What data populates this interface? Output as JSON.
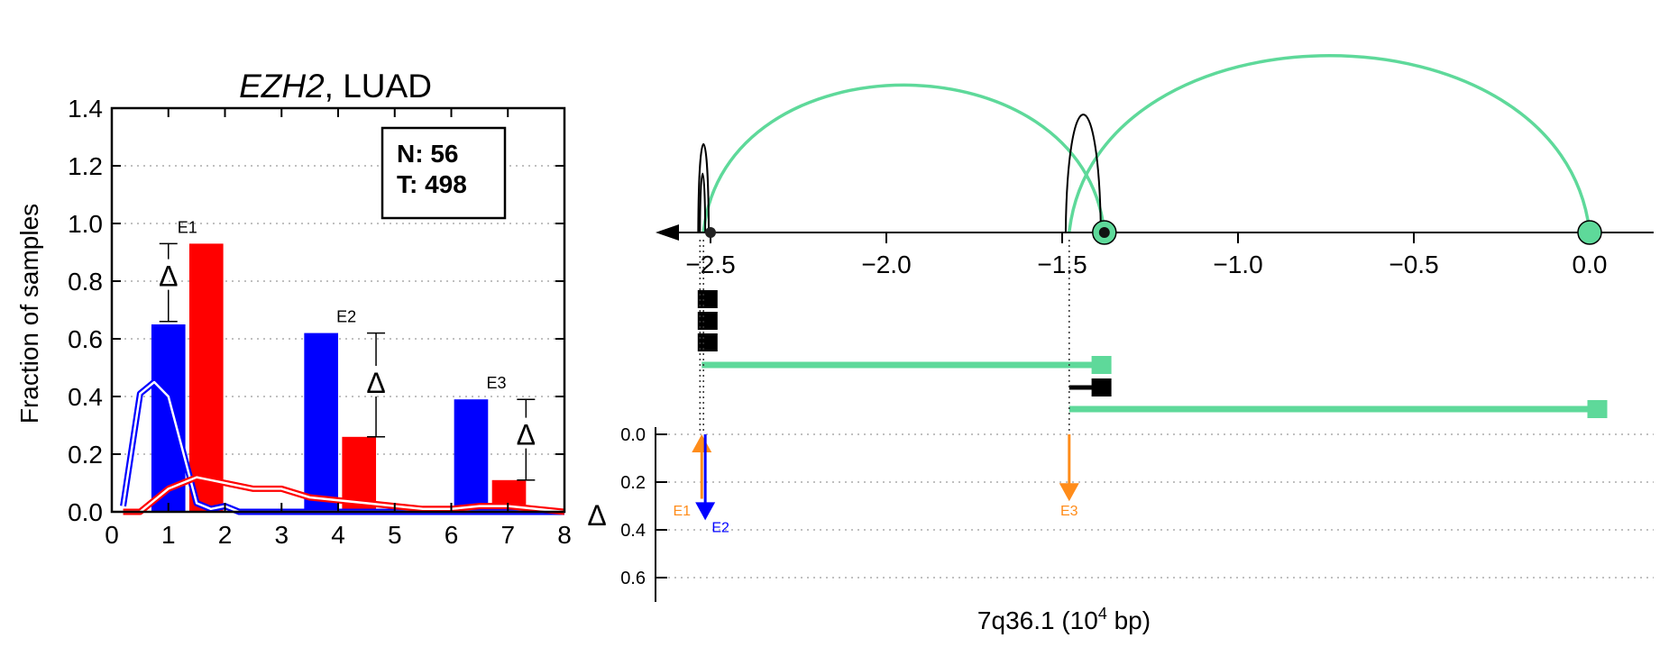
{
  "chart_data": [
    {
      "type": "bar",
      "title": "EZH2, LUAD",
      "title_italic": "EZH2",
      "title_rest": ", LUAD",
      "ylabel": "Fraction of samples",
      "xlabel": "",
      "xlim": [
        0,
        8
      ],
      "ylim": [
        0,
        1.4
      ],
      "xticks": [
        "0",
        "1",
        "2",
        "3",
        "4",
        "5",
        "6",
        "7",
        "8"
      ],
      "yticks": [
        "0.0",
        "0.2",
        "0.4",
        "0.6",
        "0.8",
        "1.0",
        "1.2",
        "1.4"
      ],
      "grid": "horizontal dotted",
      "legend": {
        "position": "top-right",
        "lines": [
          "N: 56",
          "T: 498"
        ]
      },
      "colors": {
        "normal": "#0000ff",
        "tumor": "#ff0000"
      },
      "bars": [
        {
          "label": "E1",
          "normal": 0.65,
          "tumor": 0.93,
          "delta_low": 0.66,
          "delta_high": 0.93,
          "delta_mid": 0.82
        },
        {
          "label": "E2",
          "normal": 0.62,
          "tumor": 0.26,
          "delta_low": 0.26,
          "delta_high": 0.62,
          "delta_mid": 0.45
        },
        {
          "label": "E3",
          "normal": 0.39,
          "tumor": 0.11,
          "delta_low": 0.11,
          "delta_high": 0.39,
          "delta_mid": 0.27
        }
      ],
      "delta_symbol": "Δ",
      "series": [
        {
          "name": "",
          "color": "#0000ff",
          "x": [
            0.2,
            0.5,
            0.75,
            1.0,
            1.5,
            1.75,
            2.0,
            2.25,
            2.5,
            3.0,
            3.5,
            4.0,
            4.5,
            5.0,
            5.5,
            6.0,
            6.5,
            7.0,
            7.5,
            8.0
          ],
          "y": [
            0.02,
            0.41,
            0.45,
            0.4,
            0.03,
            0.01,
            0.02,
            0.0,
            0.0,
            0.0,
            0.0,
            0.0,
            0.0,
            0.0,
            0.0,
            0.0,
            0.0,
            0.0,
            0.0,
            0.0
          ]
        },
        {
          "name": "",
          "color": "#ff0000",
          "x": [
            0.2,
            0.5,
            0.75,
            1.0,
            1.25,
            1.5,
            1.75,
            2.0,
            2.5,
            3.0,
            3.5,
            4.0,
            4.5,
            5.0,
            5.5,
            6.0,
            6.5,
            7.0,
            7.5,
            8.0
          ],
          "y": [
            0.0,
            0.0,
            0.04,
            0.08,
            0.1,
            0.12,
            0.11,
            0.1,
            0.08,
            0.08,
            0.05,
            0.04,
            0.03,
            0.02,
            0.01,
            0.01,
            0.02,
            0.02,
            0.01,
            0.0
          ]
        }
      ]
    },
    {
      "type": "genome-track",
      "xlabel": "7q36.1 (10",
      "xlabel_sup": "4",
      "xlabel_tail": " bp)",
      "xlim": [
        -2.65,
        0.15
      ],
      "xticks": [
        {
          "value": -2.5,
          "label": "−2.5"
        },
        {
          "value": -2.0,
          "label": "−2.0"
        },
        {
          "value": -1.5,
          "label": "−1.5"
        },
        {
          "value": -1.0,
          "label": "−1.0"
        },
        {
          "value": -0.5,
          "label": "−0.5"
        },
        {
          "value": 0.0,
          "label": "0.0"
        }
      ],
      "strand": "minus",
      "colors": {
        "junction_major": "#5ed99a",
        "junction_minor": "#000000",
        "e1_arrow": "#ff8c1a",
        "e2_arrow": "#0000ff",
        "e3_arrow": "#ff8c1a"
      },
      "arcs": [
        {
          "from": -2.52,
          "to": -1.38,
          "height": 1.0,
          "color": "green"
        },
        {
          "from": -1.48,
          "to": 0.0,
          "height": 1.2,
          "color": "green"
        },
        {
          "from": -2.535,
          "to": -2.505,
          "height": 0.6,
          "color": "black"
        },
        {
          "from": -2.53,
          "to": -2.515,
          "height": 0.4,
          "color": "black"
        },
        {
          "from": -1.49,
          "to": -1.39,
          "height": 0.8,
          "color": "black"
        }
      ],
      "exons": [
        {
          "start": -2.52,
          "end": -2.48,
          "row": 0,
          "color": "black"
        },
        {
          "start": -2.52,
          "end": -2.48,
          "row": 1,
          "color": "black"
        },
        {
          "start": -2.52,
          "end": -2.48,
          "row": 2,
          "color": "black"
        },
        {
          "start": -2.525,
          "end": -1.36,
          "row": 3,
          "color": "green"
        },
        {
          "start": -1.48,
          "end": -1.36,
          "row": 4,
          "color": "black"
        },
        {
          "start": -1.48,
          "end": 0.05,
          "row": 5,
          "color": "green"
        }
      ],
      "delta_axis": {
        "label": "Δ",
        "ylim": [
          0.0,
          0.7
        ],
        "yticks": [
          "0.0",
          "0.2",
          "0.4",
          "0.6"
        ],
        "arrows": [
          {
            "label": "E1",
            "x": -2.525,
            "from": 0.27,
            "to": 0.0,
            "color": "orange"
          },
          {
            "label": "E2",
            "x": -2.515,
            "from": 0.0,
            "to": 0.36,
            "color": "blue"
          },
          {
            "label": "E3",
            "x": -1.48,
            "from": 0.0,
            "to": 0.28,
            "color": "orange"
          }
        ]
      }
    }
  ]
}
